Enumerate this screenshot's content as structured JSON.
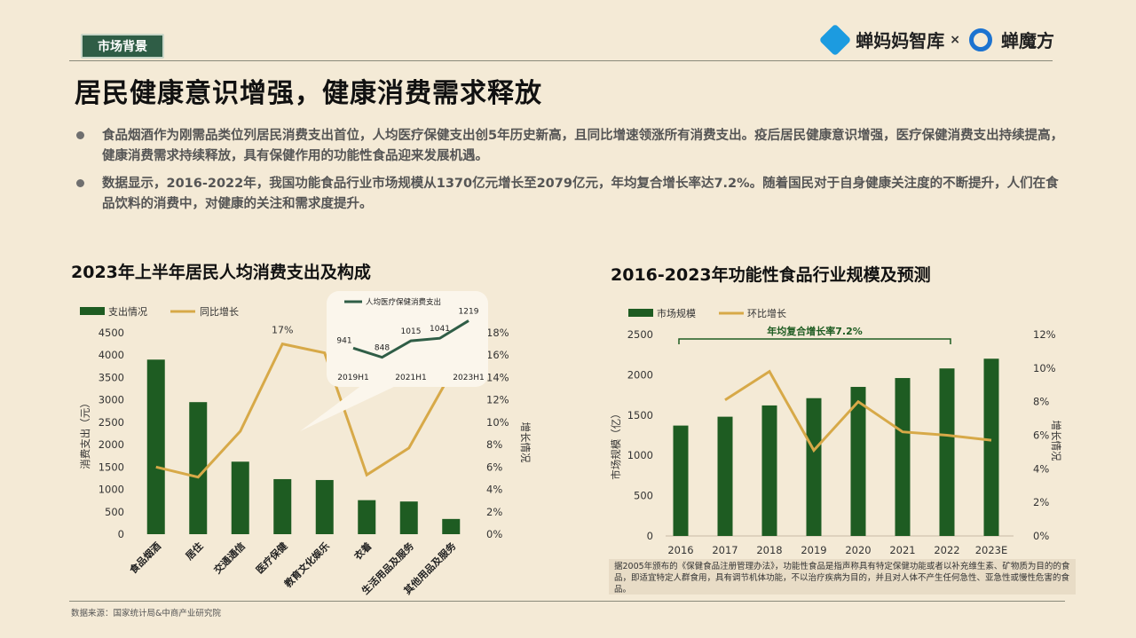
{
  "header": {
    "tag": "市场背景",
    "brand1": "蝉妈妈智库",
    "times": "×",
    "brand2": "蝉魔方"
  },
  "title": "居民健康意识增强，健康消费需求释放",
  "bullets": [
    "食品烟酒作为刚需品类位列居民消费支出首位，人均医疗保健支出创5年历史新高，且同比增速领涨所有消费支出。疫后居民健康意识增强，医疗保健消费支出持续提高，健康消费需求持续释放，具有保健作用的功能性食品迎来发展机遇。",
    "数据显示，2016-2022年，我国功能食品行业市场规模从1370亿元增长至2079亿元，年均复合增长率达7.2%。随着国民对于自身健康关注度的不断提升，人们在食品饮料的消费中，对健康的关注和需求度提升。"
  ],
  "colors": {
    "bar": "#1e5c22",
    "line": "#d7a948",
    "inset_line": "#2f5d46",
    "tag_bg": "#2f5d46"
  },
  "chart_data": [
    {
      "type": "bar",
      "title": "2023年上半年居民人均消费支出及构成",
      "categories": [
        "食品烟酒",
        "居住",
        "交通通信",
        "医疗保健",
        "教育文化娱乐",
        "衣着",
        "生活用品及服务",
        "其他用品及服务"
      ],
      "series": [
        {
          "name": "支出情况",
          "type": "bar",
          "axis": "left",
          "values": [
            3900,
            2950,
            1620,
            1230,
            1210,
            760,
            730,
            340
          ]
        },
        {
          "name": "同比增长",
          "type": "line",
          "axis": "right",
          "values": [
            6.0,
            5.1,
            9.2,
            17.0,
            16.2,
            5.3,
            7.7,
            14.4
          ],
          "labels": [
            "",
            "",
            "",
            "17%",
            "",
            "",
            "",
            ""
          ]
        }
      ],
      "ylabel": "消费支出（元）",
      "y2label": "增长情况",
      "ylim": [
        0,
        4500
      ],
      "yticks": [
        "4500",
        "4000",
        "3500",
        "3000",
        "2500",
        "2000",
        "1500",
        "1000",
        "500",
        "0"
      ],
      "y2lim": [
        0,
        18
      ],
      "y2ticks": [
        "18%",
        "16%",
        "14%",
        "12%",
        "10%",
        "8%",
        "6%",
        "4%",
        "2%",
        "0%"
      ],
      "legend": "top-left",
      "inset": {
        "type": "line",
        "legend": "人均医疗保健消费支出",
        "x": [
          "2019H1",
          "2020H1",
          "2021H1",
          "2022H1",
          "2023H1"
        ],
        "x_tick_labels": [
          "2019H1",
          "",
          "2021H1",
          "",
          "2023H1"
        ],
        "values": [
          941,
          848,
          1015,
          1041,
          1219
        ],
        "value_labels": [
          "941",
          "848",
          "1015",
          "1041",
          "1219"
        ]
      }
    },
    {
      "type": "bar",
      "title": "2016-2023年功能性食品行业规模及预测",
      "categories": [
        "2016",
        "2017",
        "2018",
        "2019",
        "2020",
        "2021",
        "2022",
        "2023E"
      ],
      "series": [
        {
          "name": "市场规模",
          "type": "bar",
          "axis": "left",
          "values": [
            1370,
            1480,
            1620,
            1710,
            1850,
            1960,
            2079,
            2200
          ]
        },
        {
          "name": "环比增长",
          "type": "line",
          "axis": "right",
          "values": [
            null,
            8.1,
            9.8,
            5.1,
            8.0,
            6.2,
            6.0,
            5.7
          ]
        }
      ],
      "ylabel": "市场规模（亿）",
      "y2label": "增长情况",
      "ylim": [
        0,
        2500
      ],
      "yticks": [
        "2500",
        "2000",
        "1500",
        "1000",
        "500",
        "0"
      ],
      "y2lim": [
        0,
        12
      ],
      "y2ticks": [
        "12%",
        "10%",
        "8%",
        "6%",
        "4%",
        "2%",
        "0%"
      ],
      "annotation": "年均复合增长率7.2%",
      "legend": "top-left"
    }
  ],
  "note": "据2005年颁布的《保健食品注册管理办法》，功能性食品是指声称具有特定保健功能或者以补充维生素、矿物质为目的的食品，即适宜特定人群食用，具有调节机体功能，不以治疗疾病为目的，并且对人体不产生任何急性、亚急性或慢性危害的食品。",
  "source": "数据来源：国家统计局&中商产业研究院"
}
